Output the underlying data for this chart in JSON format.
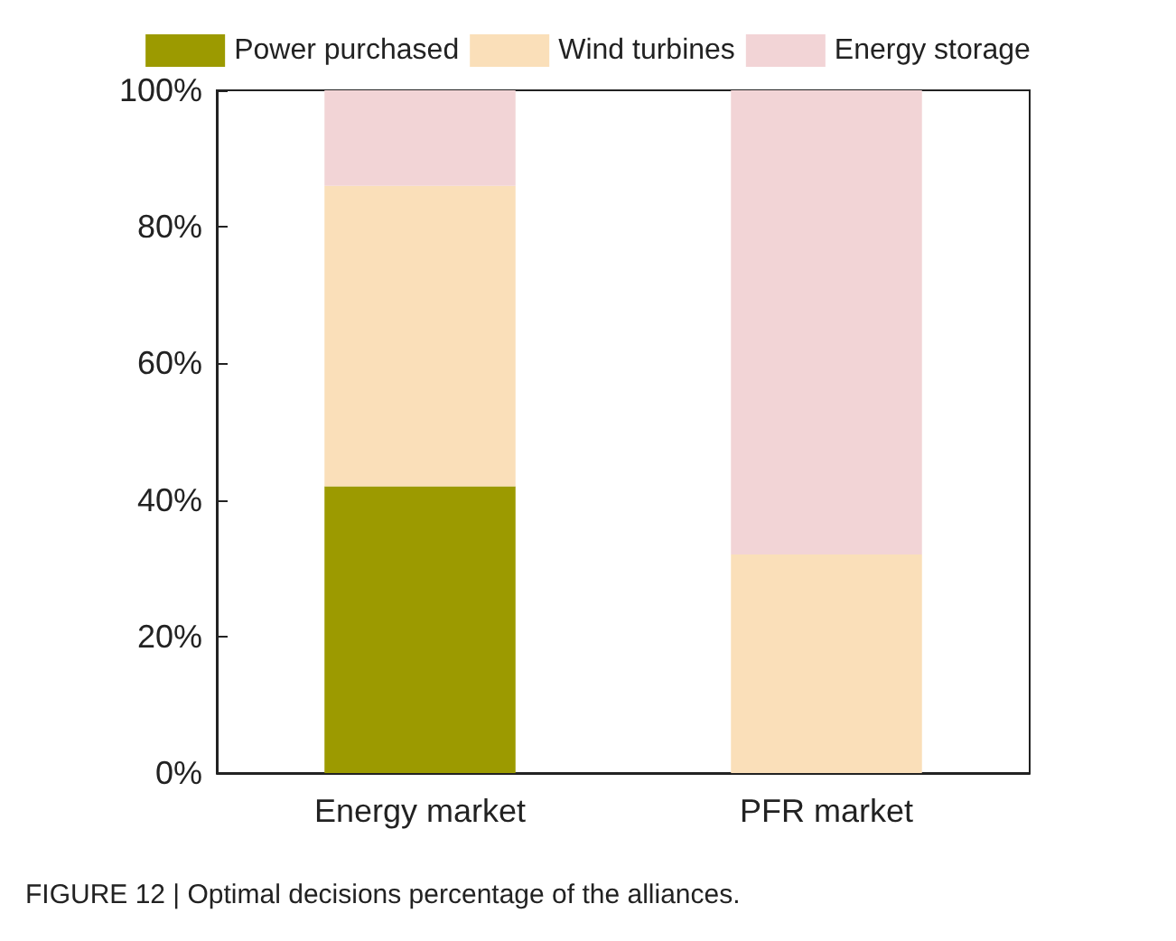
{
  "chart_data": {
    "type": "bar",
    "stacked": true,
    "categories": [
      "Energy market",
      "PFR market"
    ],
    "series": [
      {
        "name": "Power purchased",
        "color": "#9c9a00",
        "values": [
          42,
          0
        ]
      },
      {
        "name": "Wind turbines",
        "color": "#fadfb9",
        "values": [
          44,
          32
        ]
      },
      {
        "name": "Energy storage",
        "color": "#f2d4d6",
        "values": [
          14,
          68
        ]
      }
    ],
    "ylim": [
      0,
      100
    ],
    "yticks": [
      {
        "value": 0,
        "label": "0%"
      },
      {
        "value": 20,
        "label": "20%"
      },
      {
        "value": 40,
        "label": "40%"
      },
      {
        "value": 60,
        "label": "60%"
      },
      {
        "value": 80,
        "label": "80%"
      },
      {
        "value": 100,
        "label": "100%"
      }
    ],
    "grid": false,
    "legend": "top",
    "annotations": [
      "FIGURE 12 | Optimal decisions percentage of the alliances."
    ]
  }
}
